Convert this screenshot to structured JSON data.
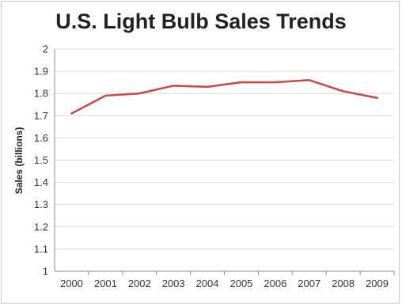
{
  "chart_data": {
    "type": "line",
    "title": "U.S. Light Bulb Sales Trends",
    "xlabel": "",
    "ylabel": "Sales (billions)",
    "categories": [
      "2000",
      "2001",
      "2002",
      "2003",
      "2004",
      "2005",
      "2006",
      "2007",
      "2008",
      "2009"
    ],
    "series": [
      {
        "values": [
          1.71,
          1.79,
          1.8,
          1.835,
          1.83,
          1.85,
          1.85,
          1.86,
          1.81,
          1.78
        ]
      }
    ],
    "ylim": [
      1,
      2
    ],
    "yticks": [
      "1",
      "1.1",
      "1.2",
      "1.3",
      "1.4",
      "1.5",
      "1.6",
      "1.7",
      "1.8",
      "1.9",
      "2"
    ],
    "grid": true,
    "legend": "none",
    "colors": {
      "line": "#c0504d",
      "grid": "#d9d9d9",
      "axis": "#8c8c8c"
    }
  }
}
